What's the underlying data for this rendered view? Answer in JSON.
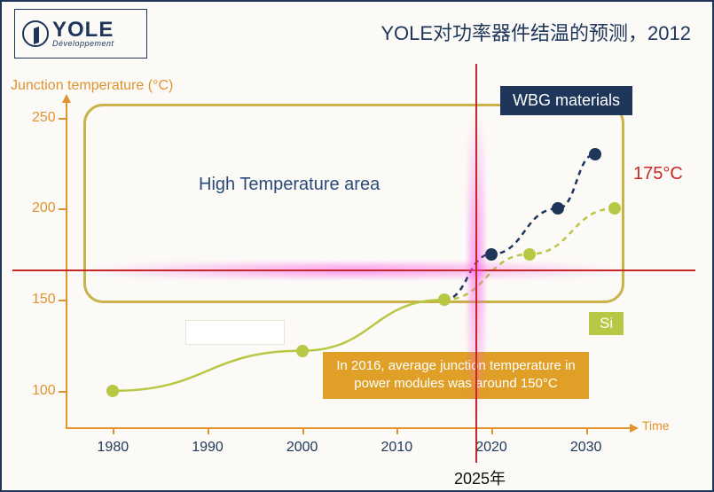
{
  "logo": {
    "brand": "YOLE",
    "sub": "Développement"
  },
  "title": "YOLE对功率器件结温的预测，2012",
  "chart": {
    "type": "scatter-line",
    "y_axis_label": "Junction temperature (°C)",
    "x_axis_label": "Time",
    "xlim": [
      1975,
      2035
    ],
    "ylim": [
      80,
      260
    ],
    "x_ticks": [
      1980,
      1990,
      2000,
      2010,
      2020,
      2030
    ],
    "y_ticks": [
      100,
      150,
      200,
      250
    ],
    "axis_color": "#e0932f",
    "tick_label_color_x": "#1e365a",
    "tick_label_color_y": "#e0932f",
    "label_fontsize": 16,
    "background_color": "#fbfaf6",
    "high_temp_box": {
      "label": "High Temperature area",
      "border_color": "#c9b24a",
      "text_color": "#2b4a7a",
      "y_range": [
        160,
        260
      ]
    },
    "wbg_badge": {
      "text": "WBG materials",
      "bg": "#1e365a",
      "color": "#ffffff"
    },
    "si_badge": {
      "text": "Si",
      "bg": "#b6c844",
      "color": "#ffffff"
    },
    "note_box": {
      "text": "In 2016, average junction temperature in power modules was around 150°C",
      "bg": "#e0a028",
      "color": "#ffffff"
    },
    "crosshair": {
      "x_value": 2025,
      "y_value": 175,
      "line_color": "#c62828",
      "glow_color": "#ff50e6",
      "x_annot": "2025年",
      "y_annot": "175°C"
    },
    "series_si": {
      "color": "#b6c844",
      "style": "solid",
      "points": [
        {
          "x": 1980,
          "y": 100
        },
        {
          "x": 2000,
          "y": 122
        },
        {
          "x": 2015,
          "y": 150
        },
        {
          "x": 2024,
          "y": 175
        },
        {
          "x": 2033,
          "y": 200
        }
      ],
      "dashed_after_index": 2
    },
    "series_wbg": {
      "color": "#1e365a",
      "style": "dashed",
      "points": [
        {
          "x": 2020,
          "y": 175
        },
        {
          "x": 2027,
          "y": 200
        },
        {
          "x": 2031,
          "y": 230
        }
      ],
      "branch_from_si_index": 2
    },
    "marker_radius": 7
  }
}
